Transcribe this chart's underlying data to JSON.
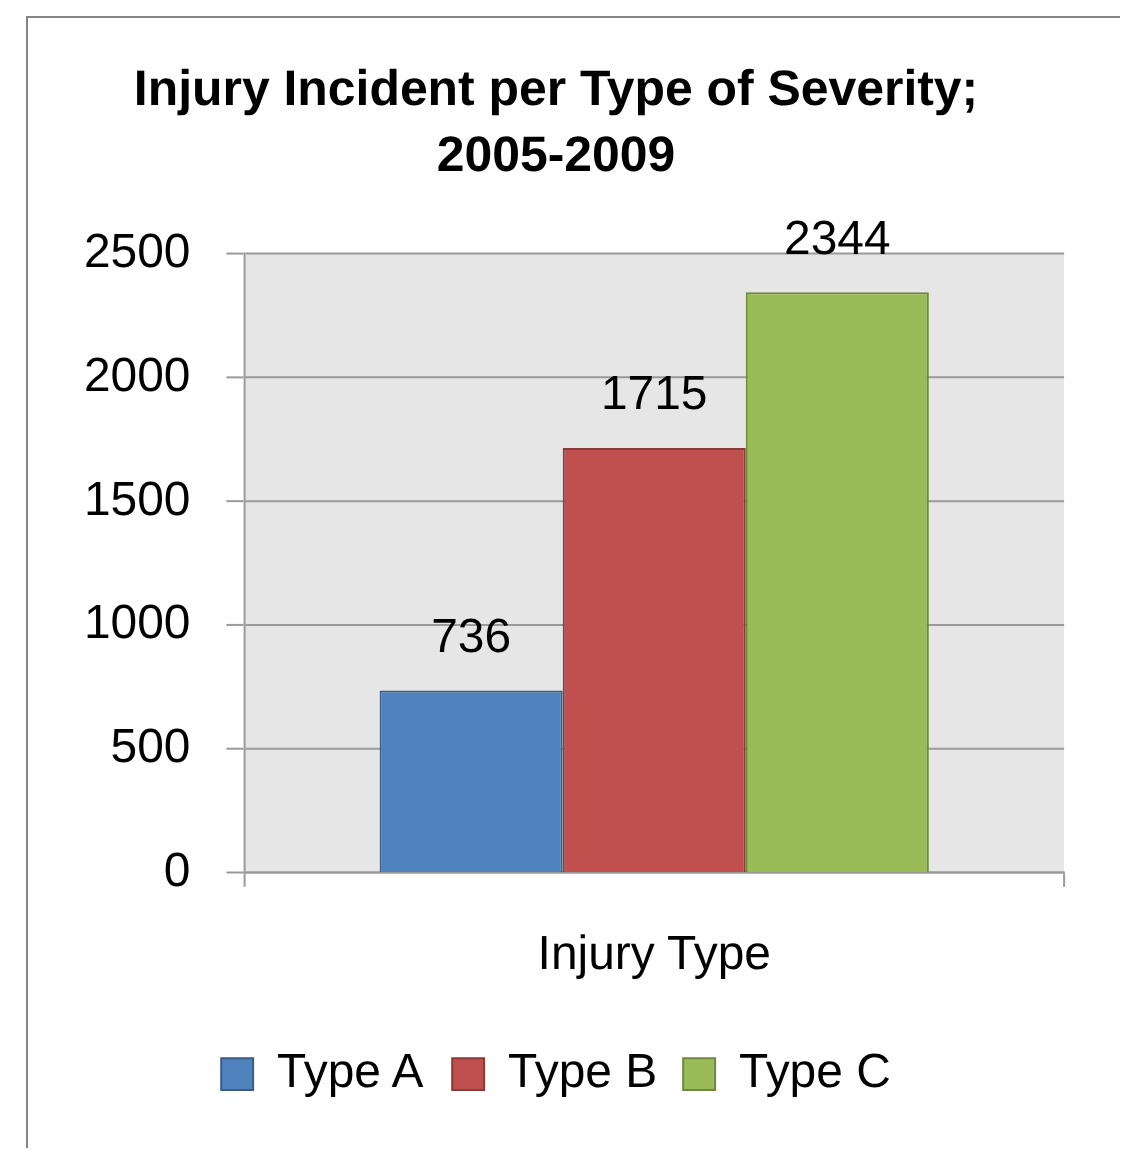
{
  "chart_data": {
    "type": "bar",
    "title": "Injury Incident per Type of Severity; 2005-2009",
    "xlabel": "Injury Type",
    "categories": [
      null
    ],
    "series": [
      {
        "name": "Type A",
        "color": "#4f81bd",
        "values": [
          736
        ]
      },
      {
        "name": "Type B",
        "color": "#c0504d",
        "values": [
          1715
        ]
      },
      {
        "name": "Type C",
        "color": "#9bbb59",
        "values": [
          2344
        ]
      }
    ],
    "ylim": [
      0,
      2500
    ],
    "yticks": [
      0,
      500,
      1000,
      1500,
      2000,
      2500
    ],
    "grid": "y",
    "legend": "bottom",
    "data_labels": true
  }
}
